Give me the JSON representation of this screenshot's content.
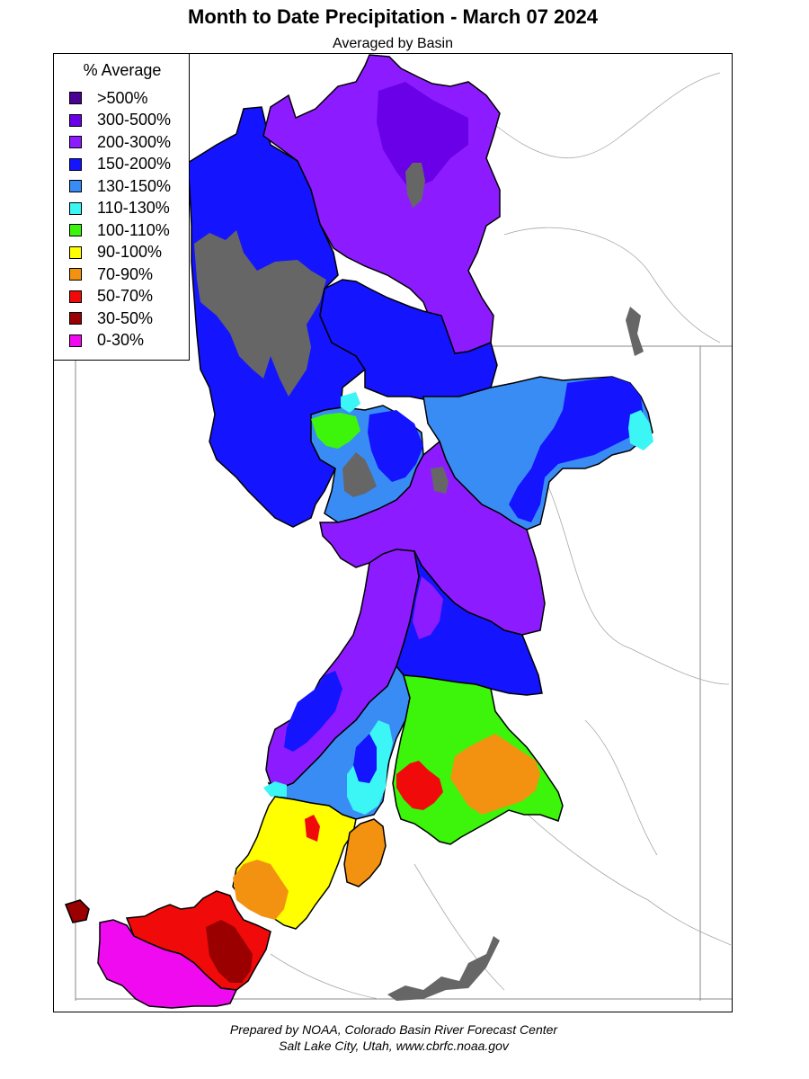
{
  "header": {
    "title": "Month to Date Precipitation - March 07 2024",
    "subtitle": "Averaged by Basin"
  },
  "legend": {
    "title": "% Average",
    "items": [
      {
        "label": ">500%",
        "color": "#4b0096"
      },
      {
        "label": "300-500%",
        "color": "#6a00e8"
      },
      {
        "label": "200-300%",
        "color": "#8c1cff"
      },
      {
        "label": "150-200%",
        "color": "#1414ff"
      },
      {
        "label": "130-150%",
        "color": "#3a8cf5"
      },
      {
        "label": "110-130%",
        "color": "#3cf5f5"
      },
      {
        "label": "100-110%",
        "color": "#3cf50a"
      },
      {
        "label": "90-100%",
        "color": "#ffff00"
      },
      {
        "label": "70-90%",
        "color": "#f39210"
      },
      {
        "label": "50-70%",
        "color": "#f00a0a"
      },
      {
        "label": "30-50%",
        "color": "#9a0000"
      },
      {
        "label": "0-30%",
        "color": "#f00af0"
      }
    ]
  },
  "map": {
    "no_data_color": "#666666",
    "boundary_color": "#000000",
    "border_color": "#8a8a8a",
    "river_color": "#a0a0a0"
  },
  "footer": {
    "line1": "Prepared by NOAA, Colorado Basin River Forecast Center",
    "line2": "Salt Lake City, Utah, www.cbrfc.noaa.gov"
  }
}
